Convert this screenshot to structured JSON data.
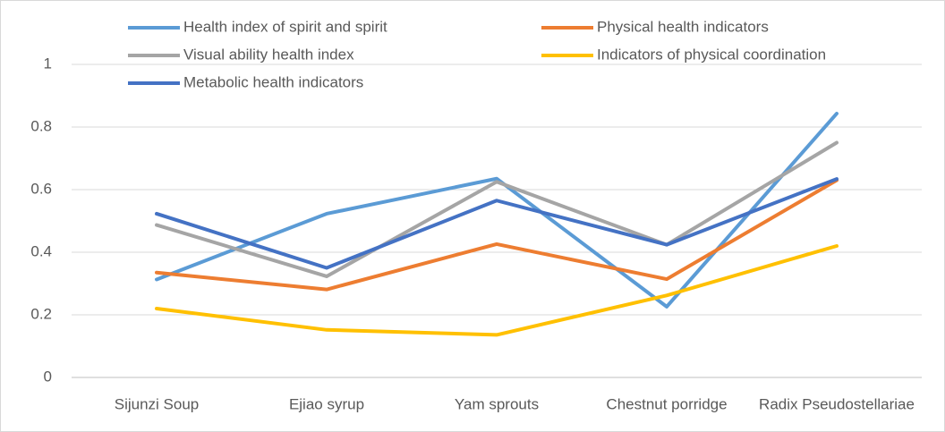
{
  "chart_data": {
    "type": "line",
    "categories": [
      "Sijunzi Soup",
      "Ejiao syrup",
      "Yam sprouts",
      "Chestnut porridge",
      "Radix Pseudostellariae"
    ],
    "series": [
      {
        "name": "Health index of spirit and spirit",
        "color": "#5b9bd5",
        "values": [
          0.313,
          0.523,
          0.635,
          0.226,
          0.843
        ]
      },
      {
        "name": "Physical health indicators",
        "color": "#ed7d31",
        "values": [
          0.335,
          0.281,
          0.426,
          0.314,
          0.63
        ]
      },
      {
        "name": "Visual ability health index",
        "color": "#a5a5a5",
        "values": [
          0.487,
          0.323,
          0.625,
          0.424,
          0.75
        ]
      },
      {
        "name": "Indicators of physical coordination",
        "color": "#ffc000",
        "values": [
          0.22,
          0.152,
          0.136,
          0.262,
          0.42
        ]
      },
      {
        "name": "Metabolic health indicators",
        "color": "#4472c4",
        "values": [
          0.523,
          0.35,
          0.565,
          0.424,
          0.634
        ]
      }
    ],
    "ylim": [
      0,
      1.1
    ],
    "yticks": [
      0,
      0.2,
      0.4,
      0.6,
      0.8,
      1
    ],
    "grid": true,
    "legend": "top"
  }
}
